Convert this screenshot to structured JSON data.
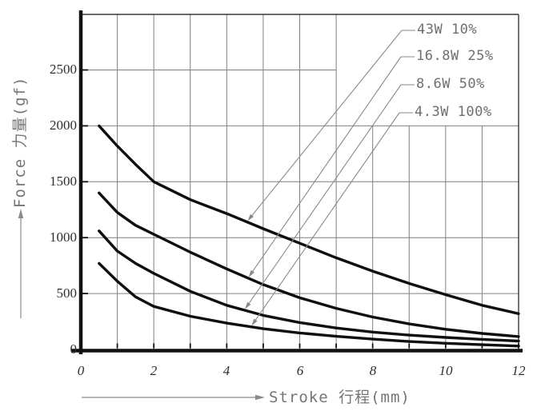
{
  "figure": {
    "x_axis_title": "Stroke 行程(mm)",
    "y_axis_title": "Force 力量(gf)"
  },
  "legend": [
    {
      "label": "43W 10%"
    },
    {
      "label": "16.8W 25%"
    },
    {
      "label": "8.6W 50%"
    },
    {
      "label": "4.3W 100%"
    }
  ],
  "colors": {
    "curve": "#0f0f0f",
    "grid": "#7f7f7f",
    "axis": "#111111",
    "frame": "#3a3a3a",
    "leader": "#8a8a8a",
    "legend_text": "#6f6f6f",
    "tick_text": "#2e2e2e",
    "title_text": "#757575"
  },
  "chart_data": {
    "type": "line",
    "title": "",
    "xlabel": "Stroke 行程(mm)",
    "ylabel": "Force 力量(gf)",
    "x_unit": "mm",
    "y_unit": "gf",
    "xlim": [
      0,
      12
    ],
    "ylim": [
      0,
      3000
    ],
    "x_ticks": [
      0,
      2,
      4,
      6,
      8,
      10,
      12
    ],
    "y_ticks": [
      0,
      500,
      1000,
      1500,
      2000,
      2500
    ],
    "grid": {
      "visible": true,
      "x_step": 1,
      "y_step": 500
    },
    "legend_position": "top-right, leader lines with arrows pointing to each curve near x=4.6 mm",
    "x": [
      0.5,
      1,
      1.5,
      2,
      3,
      4,
      5,
      6,
      7,
      8,
      9,
      10,
      11,
      12
    ],
    "series": [
      {
        "name": "43W 10%",
        "power_w": 43,
        "duty_cycle": "10%",
        "values": [
          2000,
          1820,
          1655,
          1500,
          1340,
          1215,
          1080,
          950,
          820,
          700,
          590,
          490,
          395,
          320
        ]
      },
      {
        "name": "16.8W 25%",
        "power_w": 16.8,
        "duty_cycle": "25%",
        "values": [
          1400,
          1225,
          1110,
          1030,
          870,
          720,
          580,
          462,
          368,
          290,
          228,
          180,
          143,
          115
        ]
      },
      {
        "name": "8.6W 50%",
        "power_w": 8.6,
        "duty_cycle": "50%",
        "values": [
          1060,
          880,
          770,
          680,
          520,
          395,
          305,
          240,
          192,
          155,
          128,
          107,
          90,
          75
        ]
      },
      {
        "name": "4.3W 100%",
        "power_w": 4.3,
        "duty_cycle": "100%",
        "values": [
          770,
          610,
          470,
          385,
          297,
          235,
          185,
          147,
          117,
          92,
          71,
          55,
          42,
          30
        ]
      }
    ]
  }
}
